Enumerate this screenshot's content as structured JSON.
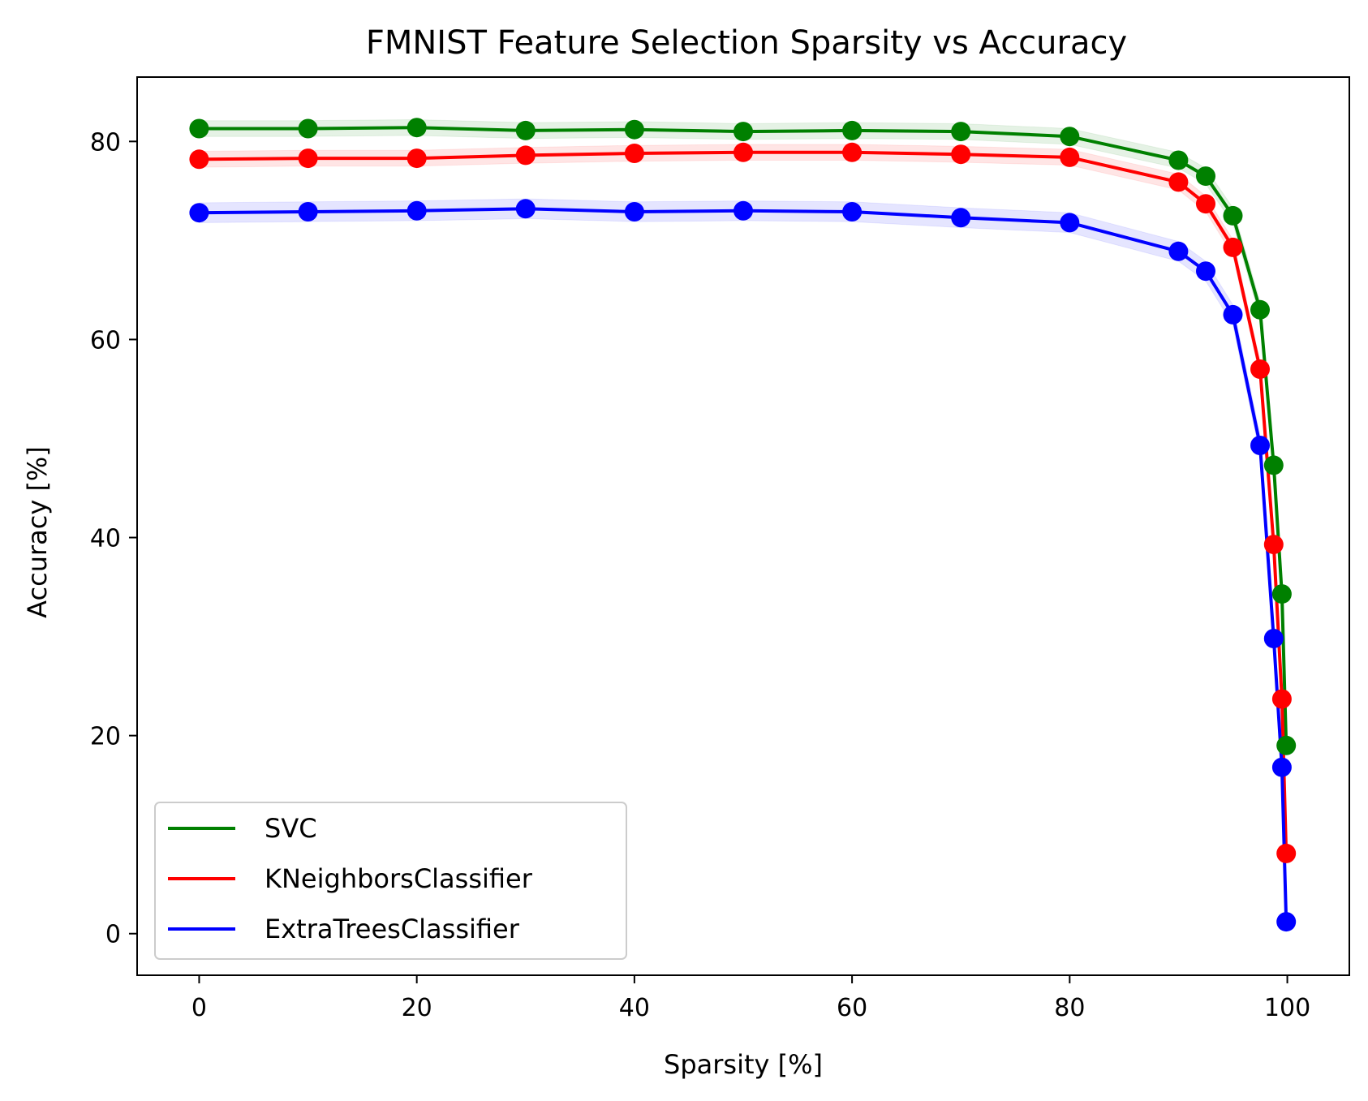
{
  "chart_data": {
    "type": "line",
    "title": "FMNIST Feature Selection Sparsity vs Accuracy",
    "xlabel": "Sparsity [%]",
    "ylabel": "Accuracy [%]",
    "xlim": [
      -5.7,
      105.7
    ],
    "ylim": [
      -4.2,
      86.5
    ],
    "xticks": [
      0,
      20,
      40,
      60,
      80,
      100
    ],
    "yticks": [
      0,
      20,
      40,
      60,
      80
    ],
    "grid": false,
    "legend": "lower-left",
    "x": [
      0,
      10,
      20,
      30,
      40,
      50,
      60,
      70,
      80,
      90,
      92.5,
      95,
      97.5,
      98.75,
      99.5,
      99.9
    ],
    "series": [
      {
        "name": "SVC",
        "color": "#008000",
        "values": [
          81.3,
          81.3,
          81.4,
          81.1,
          81.2,
          81.0,
          81.1,
          81.0,
          80.5,
          78.1,
          76.5,
          72.5,
          63.0,
          47.3,
          34.3,
          19.0
        ],
        "band": 0.8
      },
      {
        "name": "KNeighborsClassifier",
        "color": "#ff0000",
        "values": [
          78.2,
          78.3,
          78.3,
          78.6,
          78.8,
          78.9,
          78.9,
          78.7,
          78.4,
          75.9,
          73.7,
          69.3,
          57.0,
          39.3,
          23.7,
          8.1
        ],
        "band": 0.8
      },
      {
        "name": "ExtraTreesClassifier",
        "color": "#0000ff",
        "values": [
          72.8,
          72.9,
          73.0,
          73.2,
          72.9,
          73.0,
          72.9,
          72.3,
          71.8,
          68.9,
          66.9,
          62.5,
          49.3,
          29.8,
          16.8,
          1.2
        ],
        "band": 1.0
      }
    ]
  }
}
